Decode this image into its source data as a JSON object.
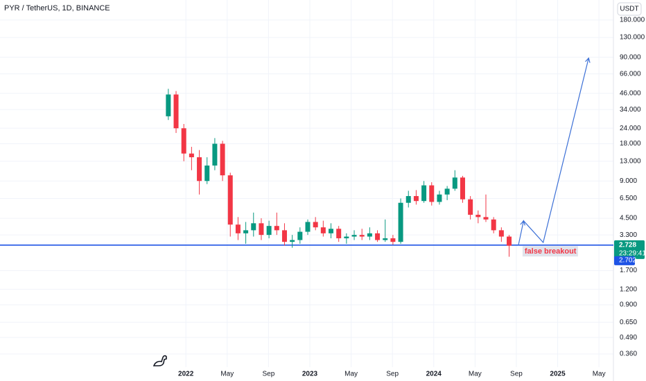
{
  "chart_data": {
    "type": "candlestick",
    "title": "PYR / TetherUS, 1D, BINANCE",
    "currency_button": "USDT",
    "log_scale": true,
    "up_color": "#089981",
    "down_color": "#f23645",
    "xlim": [
      -18,
      41.4
    ],
    "xticks": [
      {
        "value": 0,
        "label": "2022"
      },
      {
        "value": 4,
        "label": "May"
      },
      {
        "value": 8,
        "label": "Sep"
      },
      {
        "value": 12,
        "label": "2023"
      },
      {
        "value": 16,
        "label": "May"
      },
      {
        "value": 20,
        "label": "Sep"
      },
      {
        "value": 24,
        "label": "2024"
      },
      {
        "value": 28,
        "label": "May"
      },
      {
        "value": 32,
        "label": "Sep"
      },
      {
        "value": 36,
        "label": "2025"
      },
      {
        "value": 40,
        "label": "May"
      }
    ],
    "ylim": [
      0.282,
      261
    ],
    "yticks": [
      {
        "value": 180,
        "label": "180.000"
      },
      {
        "value": 130,
        "label": "130.000"
      },
      {
        "value": 90,
        "label": "90.000"
      },
      {
        "value": 66,
        "label": "66.000"
      },
      {
        "value": 46,
        "label": "46.000"
      },
      {
        "value": 34,
        "label": "34.000"
      },
      {
        "value": 24,
        "label": "24.000"
      },
      {
        "value": 18,
        "label": "18.000"
      },
      {
        "value": 13,
        "label": "13.000"
      },
      {
        "value": 9,
        "label": "9.000"
      },
      {
        "value": 6.5,
        "label": "6.500"
      },
      {
        "value": 4.5,
        "label": "4.500"
      },
      {
        "value": 3.3,
        "label": "3.300"
      },
      {
        "value": 1.7,
        "label": "1.700"
      },
      {
        "value": 1.2,
        "label": "1.200"
      },
      {
        "value": 0.9,
        "label": "0.900"
      },
      {
        "value": 0.65,
        "label": "0.650"
      },
      {
        "value": 0.49,
        "label": "0.490"
      },
      {
        "value": 0.36,
        "label": "0.360"
      }
    ],
    "candles": {
      "x": [
        -1.7,
        -0.95,
        -0.2,
        0.55,
        1.3,
        2.05,
        2.8,
        3.55,
        4.3,
        5.05,
        5.8,
        6.55,
        7.3,
        8.05,
        8.8,
        9.55,
        10.3,
        11.05,
        11.8,
        12.55,
        13.3,
        14.05,
        14.8,
        15.55,
        16.3,
        17.05,
        17.8,
        18.55,
        19.3,
        20.05,
        20.8,
        21.55,
        22.3,
        23.05,
        23.8,
        24.55,
        25.3,
        26.05,
        26.8,
        27.55,
        28.3,
        29.05,
        29.8,
        30.55,
        31.3
      ],
      "open": [
        30,
        45,
        24,
        15,
        14,
        9,
        12,
        18,
        10,
        4,
        3.4,
        3.6,
        4.1,
        3.3,
        3.9,
        3.6,
        2.9,
        3.0,
        3.5,
        4.2,
        3.8,
        3.4,
        3.7,
        3.1,
        3.2,
        3.3,
        3.2,
        3.4,
        3.0,
        3.1,
        2.9,
        6.0,
        6.8,
        6.2,
        8.3,
        6.1,
        7.0,
        7.8,
        9.6,
        6.4,
        4.8,
        4.6,
        4.4,
        3.6,
        3.2
      ],
      "high": [
        50,
        48,
        26,
        17,
        16,
        14,
        20,
        19,
        10.5,
        4.6,
        4.2,
        5.0,
        4.5,
        4.3,
        5.0,
        4.1,
        3.3,
        3.8,
        4.4,
        4.6,
        4.3,
        4.1,
        3.9,
        3.4,
        3.6,
        3.7,
        3.8,
        3.6,
        4.4,
        3.3,
        6.5,
        7.5,
        7.6,
        9.0,
        8.8,
        7.5,
        8.2,
        11.0,
        9.9,
        6.8,
        5.2,
        7.0,
        4.6,
        3.8,
        3.3
      ],
      "low": [
        28,
        22,
        13,
        11,
        7,
        8.5,
        11,
        9,
        3.2,
        3.0,
        2.8,
        3.2,
        3.0,
        3.1,
        3.3,
        2.7,
        2.6,
        2.8,
        3.3,
        3.6,
        3.2,
        3.1,
        2.9,
        2.8,
        3.0,
        3.0,
        3.0,
        2.9,
        2.9,
        2.75,
        2.8,
        5.5,
        5.8,
        6.0,
        5.7,
        5.8,
        6.3,
        7.5,
        6.0,
        4.4,
        4.1,
        4.2,
        3.4,
        2.9,
        2.2
      ],
      "close": [
        45,
        24,
        15,
        14,
        9,
        12,
        18,
        10,
        4,
        3.4,
        3.6,
        4.1,
        3.3,
        3.9,
        3.6,
        2.9,
        3.0,
        3.5,
        4.2,
        3.8,
        3.4,
        3.7,
        3.1,
        3.2,
        3.3,
        3.2,
        3.4,
        3.0,
        3.1,
        2.9,
        6.0,
        6.8,
        6.2,
        8.3,
        6.1,
        7.0,
        7.8,
        9.6,
        6.4,
        4.8,
        4.6,
        4.4,
        3.6,
        3.2,
        2.7
      ]
    },
    "horizontal_line": {
      "value": 2.73,
      "color": "#1e53e5"
    },
    "projection": {
      "x": [
        32.2,
        32.7,
        34.6,
        39.0
      ],
      "values": [
        2.73,
        4.29,
        2.87,
        88.6
      ],
      "color": "#3b6fd6"
    },
    "annotation": {
      "text": "false breakout",
      "x": 32.6,
      "value": 2.45
    },
    "last_price": {
      "value": 2.728,
      "label": "2.728"
    },
    "countdown": "23:29:41",
    "bid_price": {
      "value": 2.702,
      "label": "2.702"
    }
  }
}
